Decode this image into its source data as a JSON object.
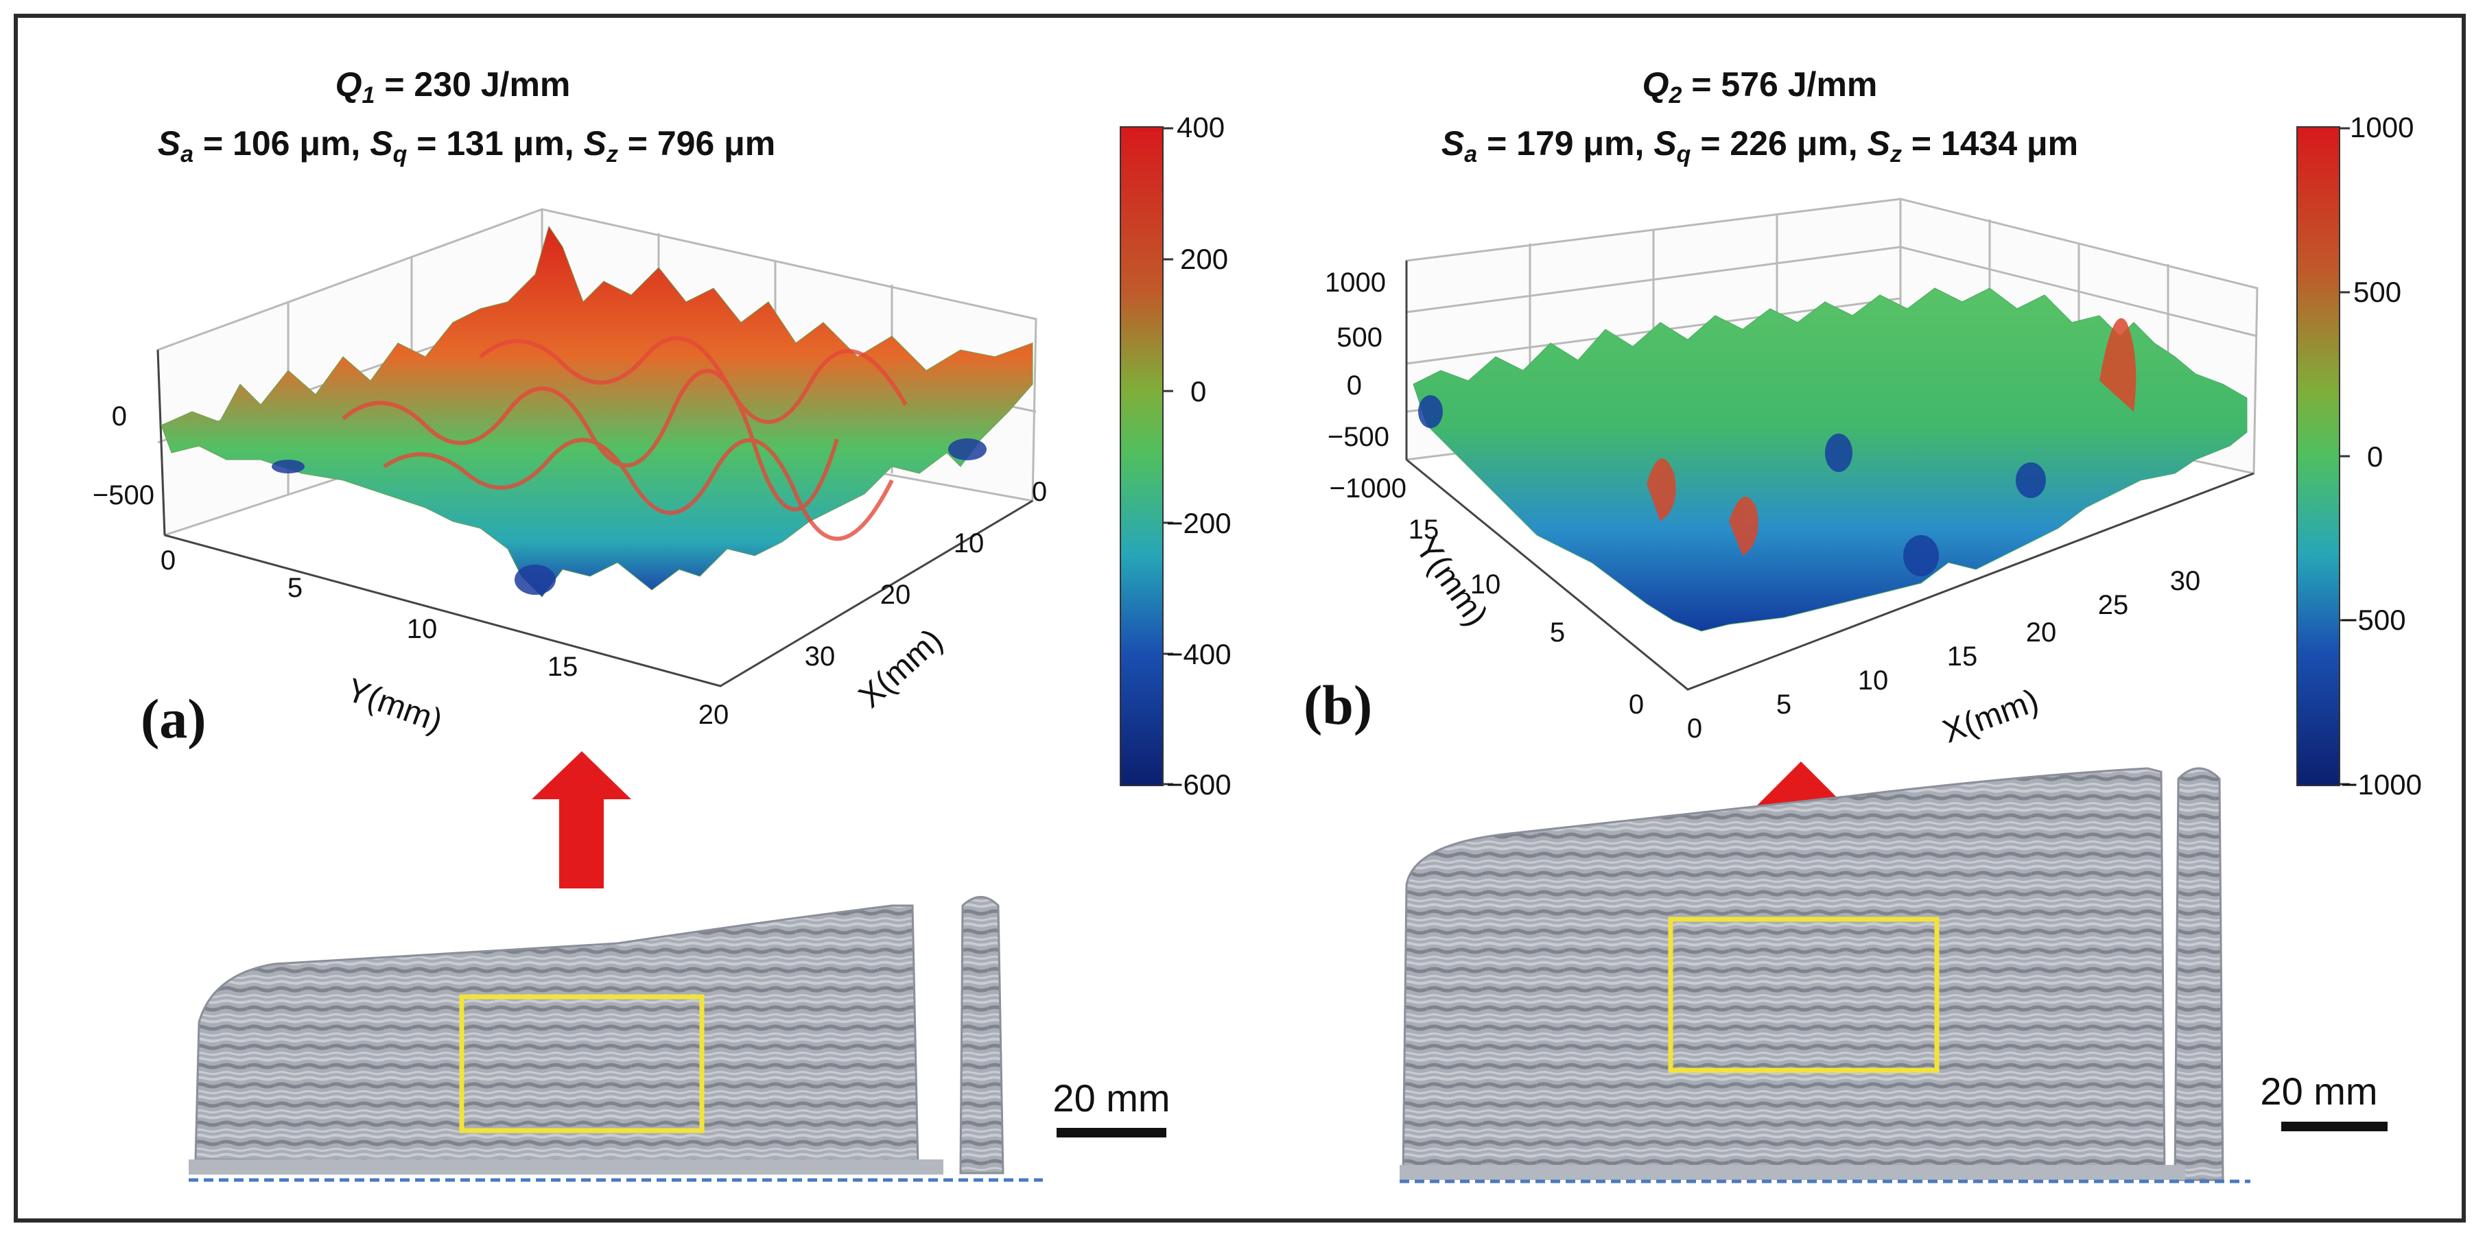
{
  "panels": [
    {
      "id": "a",
      "label": "(a)",
      "title": {
        "q_symbol": "Q",
        "q_sub": "1",
        "q_value": " = 230 J/mm",
        "sa_symbol": "S",
        "sa_sub": "a",
        "sa_value": " = 106 μm, ",
        "sq_symbol": "S",
        "sq_sub": "q",
        "sq_value": " = 131 μm, ",
        "sz_symbol": "S",
        "sz_sub": "z",
        "sz_value": " = 796 μm"
      },
      "axes": {
        "z_ticks": [
          "0",
          "−500"
        ],
        "y_ticks": [
          "0",
          "5",
          "10",
          "15",
          "20"
        ],
        "x_ticks": [
          "0",
          "10",
          "20",
          "30"
        ],
        "y_label": "Y(mm)",
        "x_label": "X(mm)"
      },
      "colorbar": {
        "ticks": [
          "400",
          "200",
          "0",
          "−200",
          "−400",
          "−600"
        ],
        "colors": [
          "#d7191c",
          "#e8702a",
          "#4fbf60",
          "#27a6b8",
          "#1a4fb0",
          "#0c1f6e"
        ]
      },
      "scale_bar": "20 mm"
    },
    {
      "id": "b",
      "label": "(b)",
      "title": {
        "q_symbol": "Q",
        "q_sub": "2",
        "q_value": " = 576 J/mm",
        "sa_symbol": "S",
        "sa_sub": "a",
        "sa_value": " = 179 μm, ",
        "sq_symbol": "S",
        "sq_sub": "q",
        "sq_value": " = 226 μm, ",
        "sz_symbol": "S",
        "sz_sub": "z",
        "sz_value": " = 1434 μm"
      },
      "axes": {
        "z_ticks": [
          "1000",
          "500",
          "0",
          "−500",
          "−1000"
        ],
        "y_ticks": [
          "15",
          "10",
          "5",
          "0"
        ],
        "x_ticks": [
          "0",
          "5",
          "10",
          "15",
          "20",
          "25",
          "30"
        ],
        "y_label": "Y(mm)",
        "x_label": "X(mm)"
      },
      "colorbar": {
        "ticks": [
          "1000",
          "500",
          "0",
          "−500",
          "−1000"
        ],
        "colors": [
          "#d7191c",
          "#e8702a",
          "#4fbf60",
          "#1a6fc0",
          "#0c1f6e"
        ]
      },
      "scale_bar": "20 mm"
    }
  ],
  "colors": {
    "arrow": "#e31a1c",
    "highlight_box": "#f2e33a",
    "part_gray": "#a9adb6",
    "baseline": "#4a78c2"
  }
}
